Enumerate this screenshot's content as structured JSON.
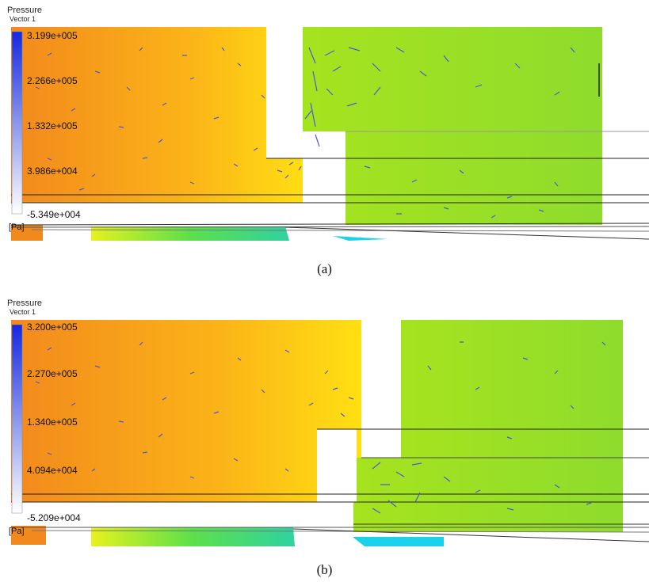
{
  "panels": [
    {
      "id": "a",
      "legend_title": "Pressure",
      "legend_subtitle": "Vector 1",
      "ticks": [
        "3.199e+005",
        "2.266e+005",
        "1.332e+005",
        "3.986e+004",
        "-5.349e+004"
      ],
      "unit": "[Pa]",
      "caption": "(a)"
    },
    {
      "id": "b",
      "legend_title": "Pressure",
      "legend_subtitle": "Vector 1",
      "ticks": [
        "3.200e+005",
        "2.270e+005",
        "1.340e+005",
        "4.094e+004",
        "-5.209e+004"
      ],
      "unit": "[Pa]",
      "caption": "(b)"
    }
  ],
  "colors": {
    "high_pressure_orange": "#f28a1a",
    "mid_pressure_yellow": "#ffdf10",
    "low_pressure_green": "#9de025",
    "vector_blue": "#4a5ad8",
    "legend_top": "#1a2ee0",
    "legend_bottom": "#ffffff"
  }
}
